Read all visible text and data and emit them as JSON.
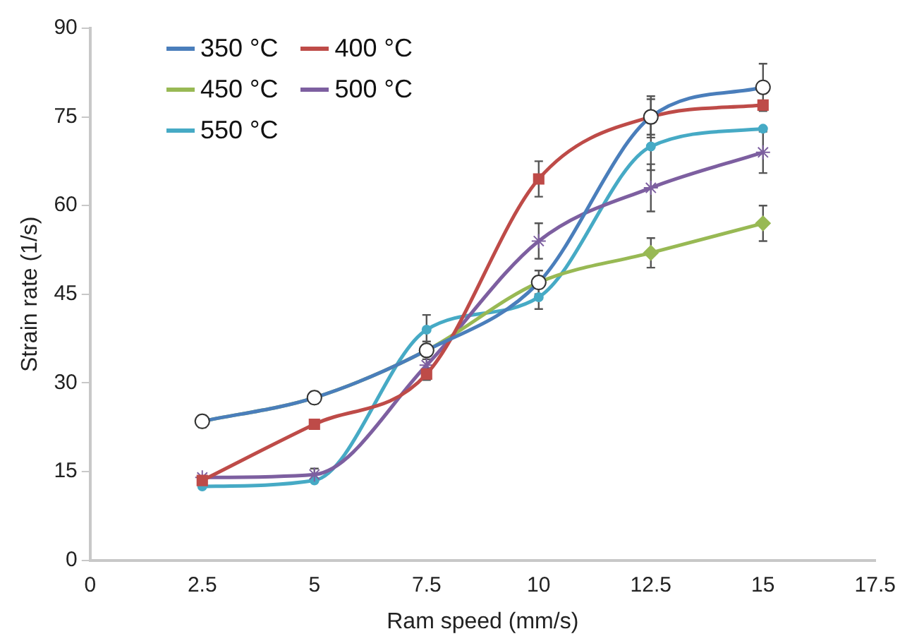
{
  "chart_data": {
    "type": "line",
    "xlabel": "Ram speed (mm/s)",
    "ylabel": "Strain rate (1/s)",
    "x": [
      2.5,
      5,
      7.5,
      10,
      12.5,
      15
    ],
    "xlim": [
      0,
      17.5
    ],
    "xticks": [
      0,
      2.5,
      5,
      7.5,
      10,
      12.5,
      15,
      17.5
    ],
    "ylim": [
      0,
      90
    ],
    "yticks": [
      0,
      15,
      30,
      45,
      60,
      75,
      90
    ],
    "grid": false,
    "legend": "top left",
    "series": [
      {
        "name": "350 °C",
        "color": "#4a7ebb",
        "marker": "circle",
        "values": [
          23.5,
          27.5,
          35.5,
          47,
          75,
          80
        ],
        "errors": [
          null,
          null,
          null,
          null,
          3.5,
          4
        ]
      },
      {
        "name": "400 °C",
        "color": "#be4b48",
        "marker": "square",
        "values": [
          13.5,
          23,
          31.5,
          64.5,
          75,
          77
        ],
        "errors": [
          null,
          null,
          1,
          3,
          3,
          null
        ]
      },
      {
        "name": "450 °C",
        "color": "#98b954",
        "marker": "diamond",
        "values": [
          23.5,
          27.5,
          35.5,
          47,
          52,
          57
        ],
        "errors": [
          1,
          1,
          1.5,
          2,
          2.5,
          3
        ]
      },
      {
        "name": "500 °C",
        "color": "#7d5fa0",
        "marker": "cross",
        "values": [
          14,
          14.5,
          33,
          54,
          63,
          69
        ],
        "errors": [
          null,
          1,
          2,
          3,
          4,
          3.5
        ]
      },
      {
        "name": "550 °C",
        "color": "#46aac5",
        "marker": "circle",
        "values": [
          12.5,
          13.5,
          39,
          44.5,
          70,
          73
        ],
        "errors": [
          null,
          null,
          2.5,
          2,
          4,
          null
        ]
      }
    ]
  }
}
